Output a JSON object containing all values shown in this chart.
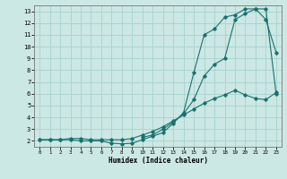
{
  "xlabel": "Humidex (Indice chaleur)",
  "xlim": [
    -0.5,
    23.5
  ],
  "ylim": [
    1.5,
    13.5
  ],
  "xticks": [
    0,
    1,
    2,
    3,
    4,
    5,
    6,
    7,
    8,
    9,
    10,
    11,
    12,
    13,
    14,
    15,
    16,
    17,
    18,
    19,
    20,
    21,
    22,
    23
  ],
  "yticks": [
    2,
    3,
    4,
    5,
    6,
    7,
    8,
    9,
    10,
    11,
    12,
    13
  ],
  "background_color": "#cce8e4",
  "grid_color": "#aad4d0",
  "line_color": "#1a7070",
  "line1_x": [
    0,
    1,
    2,
    3,
    4,
    5,
    6,
    7,
    8,
    9,
    10,
    11,
    12,
    13,
    14,
    15,
    16,
    17,
    18,
    19,
    20,
    21,
    22,
    23
  ],
  "line1_y": [
    2.1,
    2.1,
    2.1,
    2.1,
    2.0,
    2.0,
    2.0,
    1.8,
    1.75,
    1.8,
    2.1,
    2.4,
    2.7,
    3.5,
    4.4,
    7.8,
    11.0,
    11.5,
    12.5,
    12.7,
    13.2,
    13.2,
    12.3,
    9.5
  ],
  "line2_x": [
    0,
    1,
    2,
    3,
    4,
    5,
    6,
    7,
    8,
    9,
    10,
    11,
    12,
    13,
    14,
    15,
    16,
    17,
    18,
    19,
    20,
    21,
    22,
    23
  ],
  "line2_y": [
    2.1,
    2.1,
    2.1,
    2.2,
    2.2,
    2.1,
    2.1,
    2.1,
    2.1,
    2.2,
    2.5,
    2.8,
    3.2,
    3.7,
    4.2,
    4.7,
    5.2,
    5.6,
    5.9,
    6.3,
    5.9,
    5.6,
    5.5,
    6.1
  ],
  "line3_x": [
    10,
    11,
    12,
    13,
    14,
    15,
    16,
    17,
    18,
    19,
    20,
    21,
    22,
    23
  ],
  "line3_y": [
    2.3,
    2.5,
    3.0,
    3.6,
    4.3,
    5.5,
    7.5,
    8.5,
    9.0,
    12.3,
    12.8,
    13.2,
    13.2,
    6.0
  ]
}
